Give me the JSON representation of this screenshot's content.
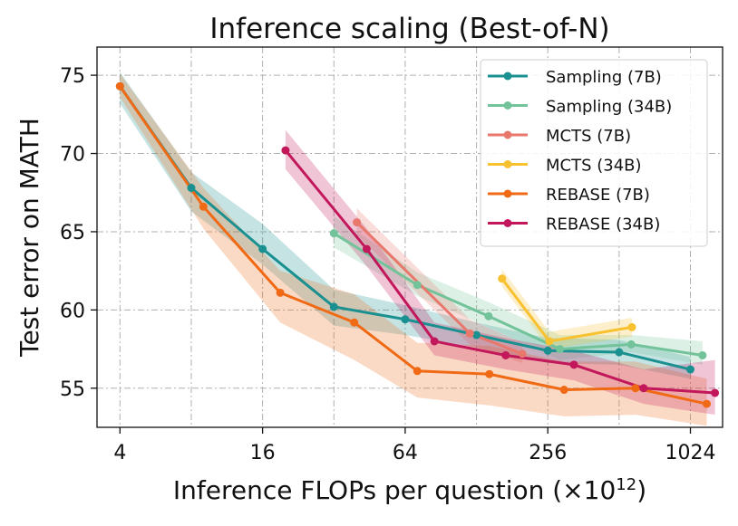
{
  "chart_data": {
    "type": "line",
    "title": "Inference scaling (Best-of-N)",
    "xlabel": "Inference FLOPs per question (×10",
    "xlabel_sup": "12",
    "xlabel_close": ")",
    "ylabel": "Test error on MATH",
    "xscale": "log2",
    "xlim": [
      3.2,
      1400
    ],
    "ylim": [
      52.5,
      76.8
    ],
    "xticks": [
      4,
      16,
      64,
      256,
      1024
    ],
    "xtick_labels": [
      "4",
      "16",
      "64",
      "256",
      "1024"
    ],
    "yticks": [
      55,
      60,
      65,
      70,
      75
    ],
    "ytick_labels": [
      "55",
      "60",
      "65",
      "70",
      "75"
    ],
    "grid": true,
    "legend_position": "top-right",
    "series": [
      {
        "name": "Sampling (7B)",
        "color": "#1a9090",
        "x": [
          4,
          8,
          16,
          32,
          64,
          128,
          256,
          512,
          1024
        ],
        "y": [
          74.3,
          67.8,
          63.9,
          60.2,
          59.4,
          58.4,
          57.4,
          57.3,
          56.2
        ],
        "lower": [
          73.2,
          66.3,
          62.9,
          59.0,
          58.4,
          57.6,
          56.6,
          56.5,
          55.6
        ],
        "upper": [
          75.2,
          68.8,
          65.5,
          61.3,
          60.3,
          59.2,
          58.2,
          58.1,
          57.0
        ]
      },
      {
        "name": "Sampling (34B)",
        "color": "#72c39a",
        "x": [
          32,
          72,
          144,
          288,
          576,
          1152
        ],
        "y": [
          64.9,
          61.6,
          59.6,
          57.5,
          57.8,
          57.1
        ],
        "lower": [
          64.0,
          60.9,
          58.9,
          56.8,
          57.3,
          56.5
        ],
        "upper": [
          66.0,
          62.4,
          60.5,
          58.4,
          58.4,
          58.0
        ]
      },
      {
        "name": "MCTS (7B)",
        "color": "#e8776c",
        "x": [
          40,
          120,
          200
        ],
        "y": [
          65.6,
          58.5,
          57.2
        ],
        "lower": [
          64.8,
          57.8,
          56.6
        ],
        "upper": [
          66.5,
          59.4,
          57.9
        ]
      },
      {
        "name": "MCTS (34B)",
        "color": "#f7c12f",
        "x": [
          164,
          260,
          580
        ],
        "y": [
          62.0,
          58.0,
          58.9
        ],
        "lower": [
          61.5,
          57.5,
          58.3
        ],
        "upper": [
          62.6,
          58.6,
          59.5
        ]
      },
      {
        "name": "REBASE (7B)",
        "color": "#f06a16",
        "x": [
          4,
          9,
          19,
          39,
          72,
          145,
          300,
          600,
          1200
        ],
        "y": [
          74.3,
          66.6,
          61.1,
          59.2,
          56.1,
          55.9,
          54.9,
          55.0,
          54.0
        ],
        "lower": [
          73.6,
          65.2,
          59.2,
          56.8,
          54.4,
          53.9,
          53.2,
          53.3,
          52.6
        ],
        "upper": [
          75.1,
          67.8,
          62.5,
          61.0,
          57.9,
          57.7,
          56.7,
          56.7,
          55.6
        ]
      },
      {
        "name": "REBASE (34B)",
        "color": "#c2185b",
        "x": [
          20,
          44,
          85,
          170,
          330,
          650,
          1300
        ],
        "y": [
          70.2,
          63.9,
          58.0,
          57.1,
          56.5,
          55.0,
          54.7
        ],
        "lower": [
          69.0,
          62.8,
          57.1,
          56.2,
          55.5,
          54.0,
          53.3
        ],
        "upper": [
          71.5,
          65.2,
          59.2,
          58.2,
          57.4,
          56.2,
          56.8
        ]
      }
    ]
  }
}
